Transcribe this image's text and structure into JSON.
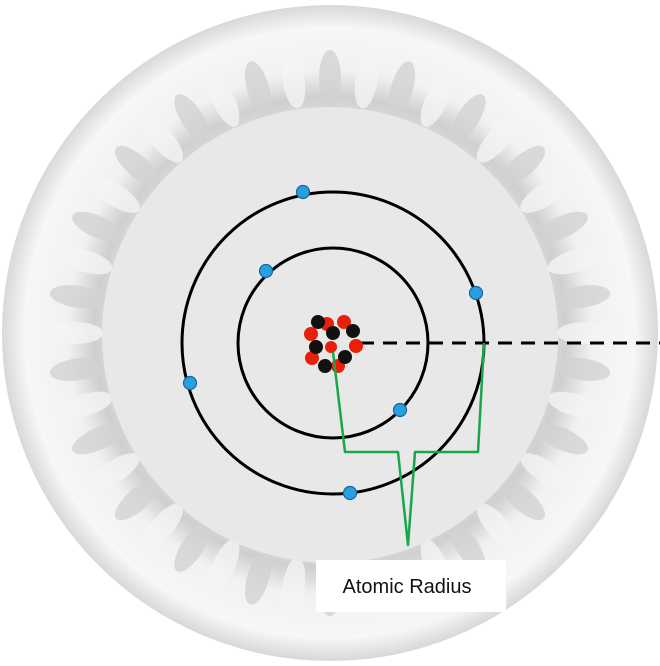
{
  "label": "Atomic Radius"
}
